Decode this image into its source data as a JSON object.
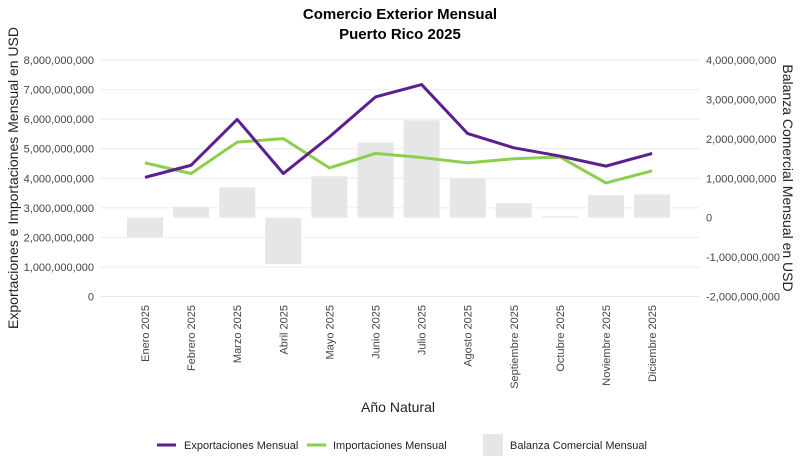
{
  "chart_data": {
    "type": "bar+line",
    "title": "Comercio Exterior Mensual",
    "subtitle": "Puerto Rico 2025",
    "xlabel": "Año Natural",
    "ylabel": "Exportaciones e Importaciones Mensual en USD",
    "y2label": "Balanza Comercial Mensual en USD",
    "ylim": [
      0,
      8000000000
    ],
    "y2lim": [
      -2000000000,
      4000000000
    ],
    "yticks": [
      "0",
      "1,000,000,000",
      "2,000,000,000",
      "3,000,000,000",
      "4,000,000,000",
      "5,000,000,000",
      "6,000,000,000",
      "7,000,000,000",
      "8,000,000,000"
    ],
    "y2ticks": [
      "-2,000,000,000",
      "-1,000,000,000",
      "0",
      "1,000,000,000",
      "2,000,000,000",
      "3,000,000,000",
      "4,000,000,000"
    ],
    "grid": true,
    "legend_position": "bottom",
    "categories": [
      "Enero 2025",
      "Febrero 2025",
      "Marzo 2025",
      "Abril 2025",
      "Mayo 2025",
      "Junio 2025",
      "Julio 2025",
      "Agosto 2025",
      "Septiembre 2025",
      "Octubre 2025",
      "Noviembre 2025",
      "Diciembre 2025"
    ],
    "series": [
      {
        "name": "Exportaciones Mensual",
        "type": "line",
        "axis": "left",
        "color": "#5b1f8f",
        "values": [
          4030000000,
          4440000000,
          5990000000,
          4160000000,
          5400000000,
          6750000000,
          7170000000,
          5510000000,
          5030000000,
          4750000000,
          4410000000,
          4840000000
        ]
      },
      {
        "name": "Importaciones Mensual",
        "type": "line",
        "axis": "left",
        "color": "#8ccf4d",
        "values": [
          4520000000,
          4160000000,
          5220000000,
          5340000000,
          4350000000,
          4840000000,
          4700000000,
          4520000000,
          4660000000,
          4720000000,
          3840000000,
          4250000000
        ]
      },
      {
        "name": "Balanza Comercial Mensual",
        "type": "bar",
        "axis": "right",
        "color": "#e6e6e6",
        "values": [
          -490000000,
          280000000,
          770000000,
          -1180000000,
          1050000000,
          1910000000,
          2470000000,
          990000000,
          370000000,
          30000000,
          570000000,
          590000000
        ]
      }
    ]
  }
}
